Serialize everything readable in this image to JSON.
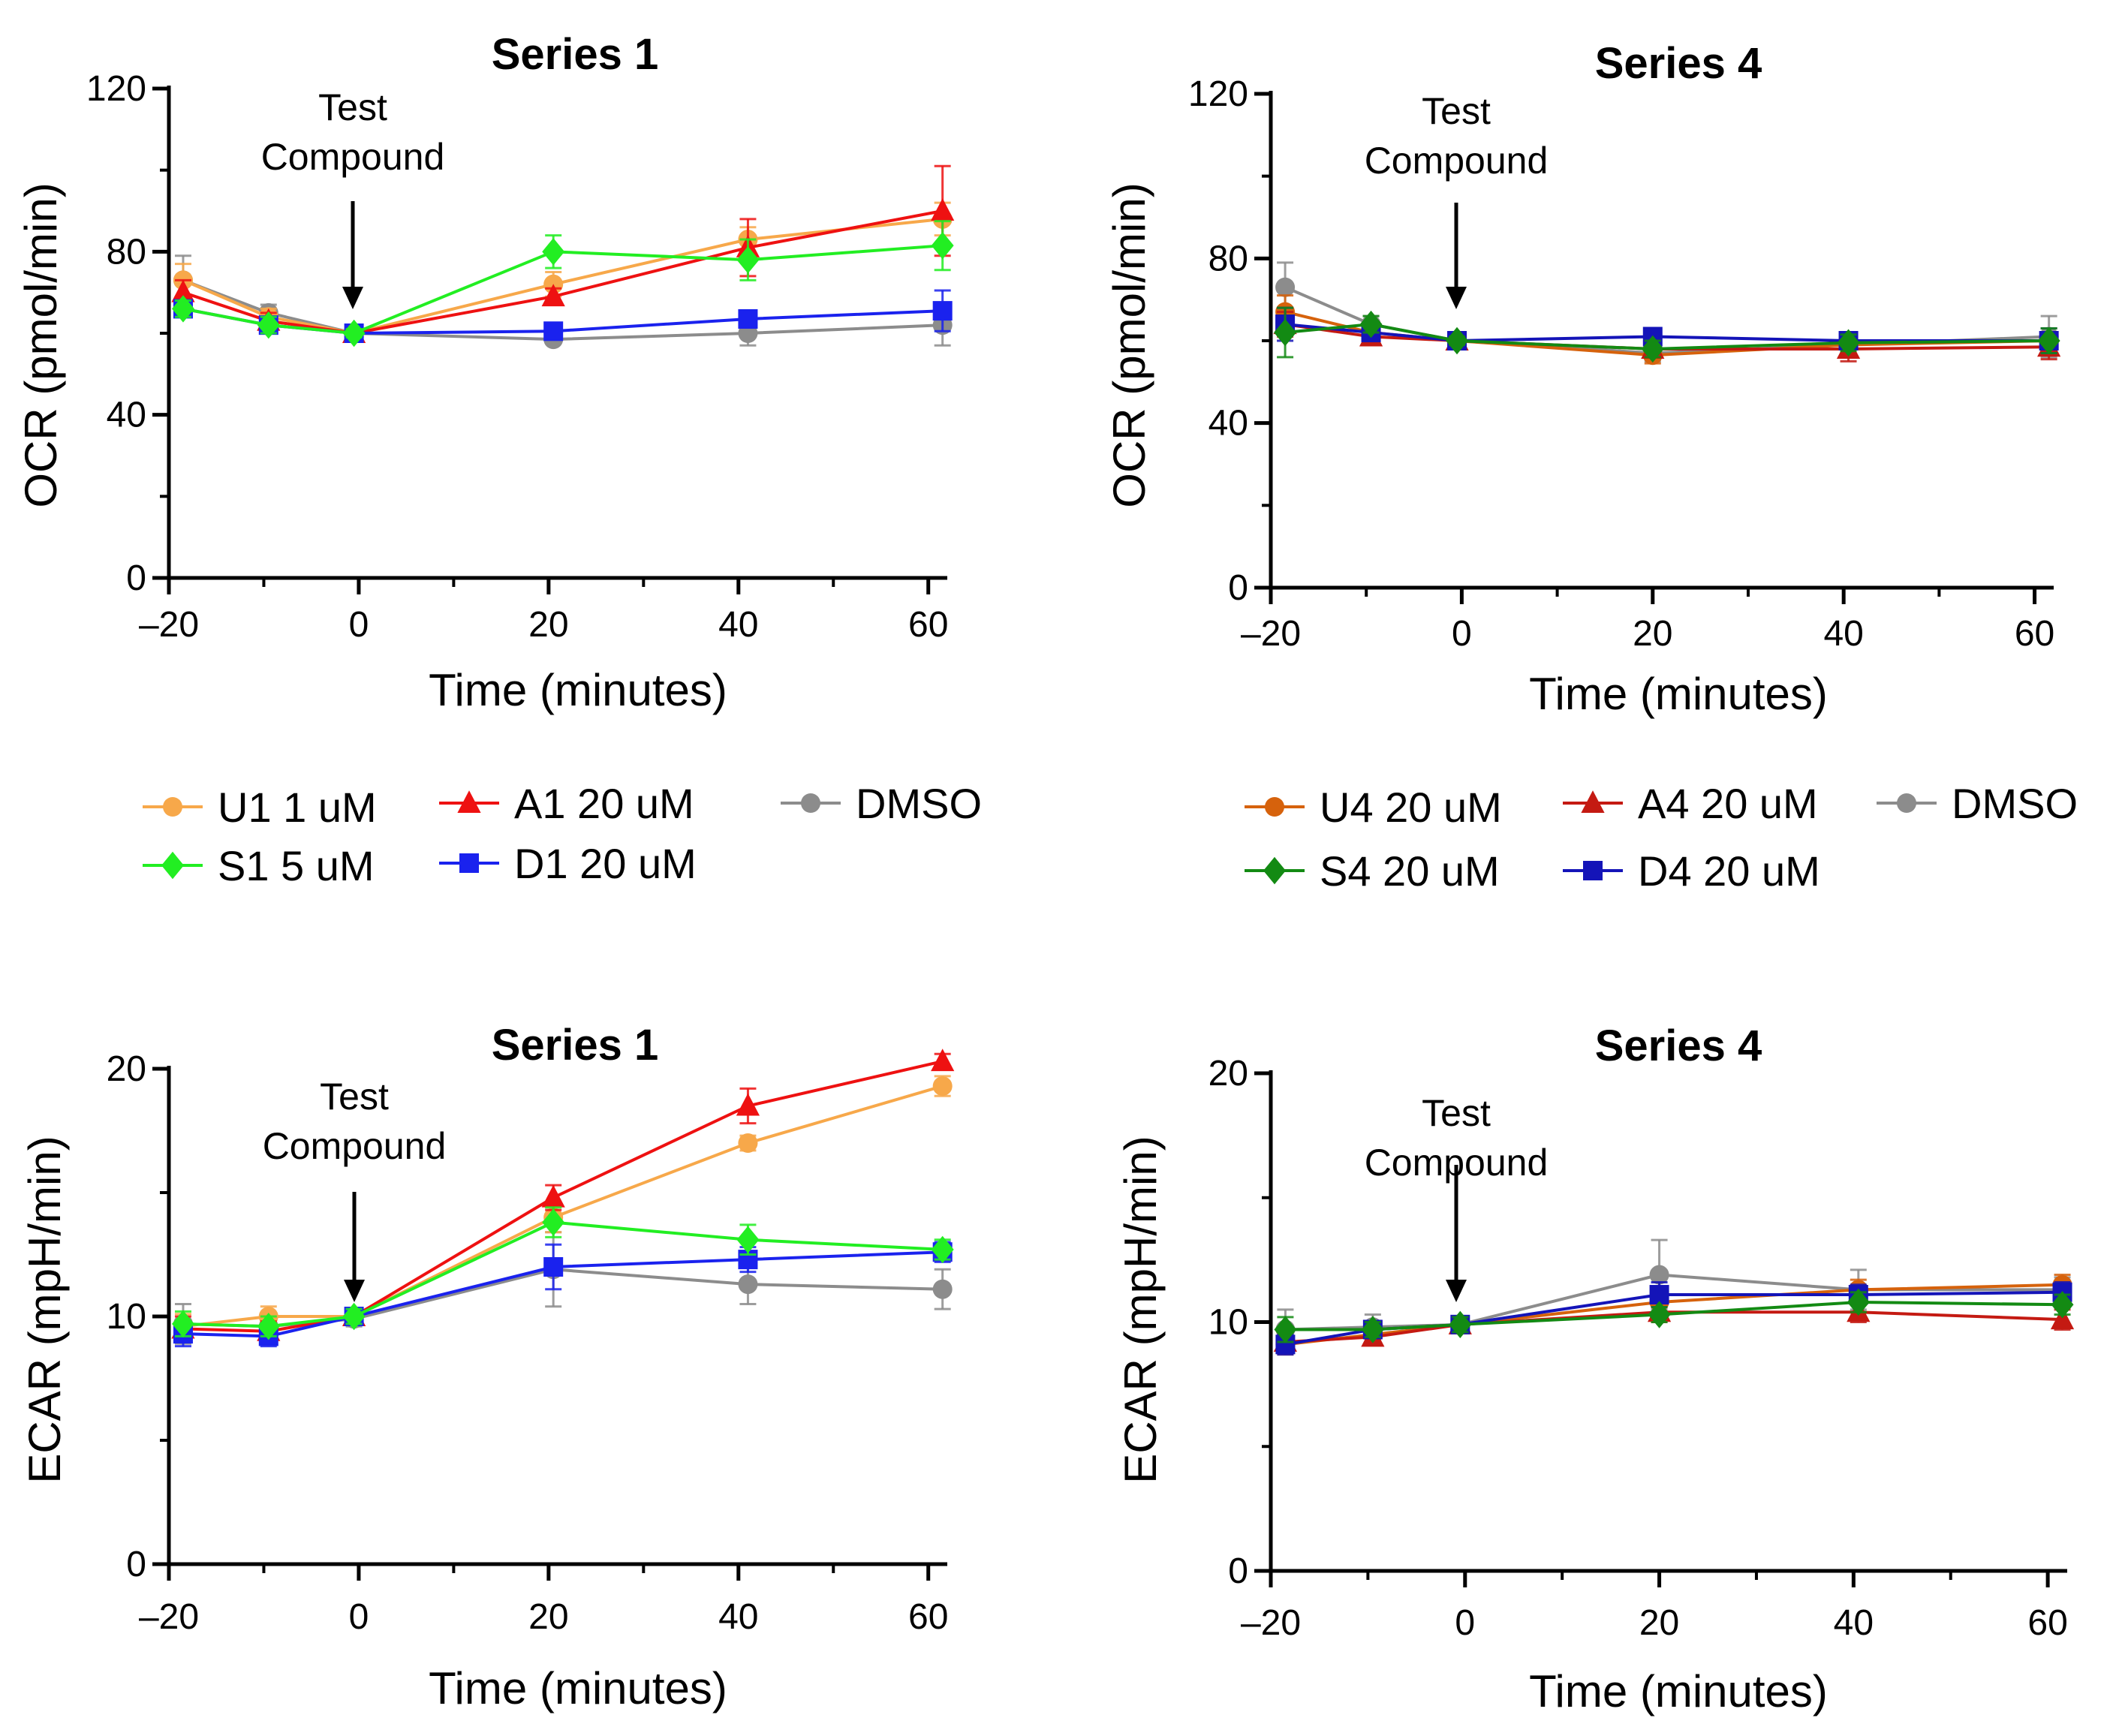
{
  "colors": {
    "U1": "#F7A84A",
    "S1": "#22EE22",
    "A1": "#EE1111",
    "D1": "#1A22EE",
    "DMSO": "#8C8C8C",
    "U4": "#D6620C",
    "S4": "#138A13",
    "A4": "#C41A12",
    "D4": "#1414B8"
  },
  "chart_data": [
    {
      "id": "ocr1",
      "type": "line",
      "title": "Series 1",
      "xlabel": "Time (minutes)",
      "ylabel": "OCR (pmol/min)",
      "xlim": [
        -20,
        62
      ],
      "ylim": [
        0,
        120
      ],
      "xticks": [
        -20,
        0,
        20,
        40,
        60
      ],
      "yticks": [
        0,
        40,
        80,
        120
      ],
      "ytick_labels": [
        "0",
        "40",
        "80",
        "120"
      ],
      "annotation": [
        "Test",
        "Compound"
      ],
      "series": [
        {
          "key": "DMSO",
          "name": "DMSO",
          "marker": "circle",
          "x": [
            -18.5,
            -9.5,
            -0.5,
            20.5,
            41,
            61.5
          ],
          "y": [
            73,
            65,
            60,
            58.5,
            60,
            62
          ],
          "err": [
            6,
            2,
            1,
            1,
            3,
            5
          ]
        },
        {
          "key": "U1",
          "name": "U1 1 uM",
          "marker": "circle",
          "x": [
            -18.5,
            -9.5,
            -0.5,
            20.5,
            41,
            61.5
          ],
          "y": [
            73,
            64,
            60,
            72,
            83,
            88
          ],
          "err": [
            4,
            2,
            1,
            3,
            3,
            4
          ]
        },
        {
          "key": "A1",
          "name": "A1 20 uM",
          "marker": "triangle",
          "x": [
            -18.5,
            -9.5,
            -0.5,
            20.5,
            41,
            61.5
          ],
          "y": [
            70,
            63,
            60,
            69,
            81,
            90
          ],
          "err": [
            3,
            2,
            1,
            2,
            7,
            11
          ]
        },
        {
          "key": "D1",
          "name": "D1 20 uM",
          "marker": "square",
          "x": [
            -18.5,
            -9.5,
            -0.5,
            20.5,
            41,
            61.5
          ],
          "y": [
            66,
            62,
            60,
            60.5,
            63.5,
            65.5
          ],
          "err": [
            2,
            2,
            1,
            2,
            2,
            5
          ]
        },
        {
          "key": "S1",
          "name": "S1 5 uM",
          "marker": "diamond",
          "x": [
            -18.5,
            -9.5,
            -0.5,
            20.5,
            41,
            61.5
          ],
          "y": [
            66,
            62,
            60,
            80,
            78,
            81.5
          ],
          "err": [
            2,
            2,
            1,
            4,
            5,
            6
          ]
        }
      ]
    },
    {
      "id": "ocr4",
      "type": "line",
      "title": "Series 4",
      "xlabel": "Time (minutes)",
      "ylabel": "OCR (pmol/min)",
      "xlim": [
        -20,
        62
      ],
      "ylim": [
        0,
        120
      ],
      "xticks": [
        -20,
        0,
        20,
        40,
        60
      ],
      "yticks": [
        0,
        40,
        80,
        120
      ],
      "ytick_labels": [
        "0",
        "40",
        "80",
        "120"
      ],
      "annotation": [
        "Test",
        "Compound"
      ],
      "series": [
        {
          "key": "DMSO",
          "name": "DMSO",
          "marker": "circle",
          "x": [
            -18.5,
            -9.5,
            -0.5,
            20,
            40.5,
            61.5
          ],
          "y": [
            73,
            64,
            60,
            57,
            59,
            61
          ],
          "err": [
            6,
            2,
            1,
            2,
            3,
            5
          ]
        },
        {
          "key": "U4",
          "name": "U4 20 uM",
          "marker": "circle",
          "x": [
            -18.5,
            -9.5,
            -0.5,
            20,
            40.5,
            61.5
          ],
          "y": [
            67,
            62,
            60,
            56.5,
            59,
            60
          ],
          "err": [
            4,
            2,
            1,
            2,
            2,
            3
          ]
        },
        {
          "key": "A4",
          "name": "A4 20 uM",
          "marker": "triangle",
          "x": [
            -18.5,
            -9.5,
            -0.5,
            20,
            40.5,
            61.5
          ],
          "y": [
            64,
            61,
            60,
            58,
            58,
            58.5
          ],
          "err": [
            3,
            2,
            1,
            2,
            3,
            3
          ]
        },
        {
          "key": "D4",
          "name": "D4 20 uM",
          "marker": "square",
          "x": [
            -18.5,
            -9.5,
            -0.5,
            20,
            40.5,
            61.5
          ],
          "y": [
            64,
            62,
            60,
            61,
            60,
            60
          ],
          "err": [
            4,
            2,
            1,
            2,
            2,
            3
          ]
        },
        {
          "key": "S4",
          "name": "S4 20 uM",
          "marker": "diamond",
          "x": [
            -18.5,
            -9.5,
            -0.5,
            20,
            40.5,
            61.5
          ],
          "y": [
            62,
            64,
            60,
            58,
            59.5,
            60
          ],
          "err": [
            6,
            2,
            1,
            2,
            2,
            3
          ]
        }
      ]
    },
    {
      "id": "ecar1",
      "type": "line",
      "title": "Series 1",
      "xlabel": "Time (minutes)",
      "ylabel": "ECAR (mpH/min)",
      "xlim": [
        -20,
        62
      ],
      "ylim": [
        0,
        21
      ],
      "xticks": [
        -20,
        0,
        20,
        40,
        60
      ],
      "yticks": [
        0,
        10,
        20
      ],
      "ytick_labels": [
        "0",
        "10",
        "20"
      ],
      "annotation": [
        "Test",
        "Compound"
      ],
      "series": [
        {
          "key": "DMSO",
          "name": "DMSO",
          "marker": "circle",
          "x": [
            -18.5,
            -9.5,
            -0.5,
            20.5,
            41,
            61.5
          ],
          "y": [
            9.7,
            9.6,
            9.9,
            11.9,
            11.3,
            11.1
          ],
          "err": [
            0.8,
            0.5,
            0.3,
            1.5,
            0.8,
            0.8
          ]
        },
        {
          "key": "U1",
          "name": "U1 1 uM",
          "marker": "circle",
          "x": [
            -18.5,
            -9.5,
            -0.5,
            20.5,
            41,
            61.5
          ],
          "y": [
            9.6,
            10,
            10,
            14,
            17,
            19.3
          ],
          "err": [
            0.5,
            0.4,
            0.3,
            0.6,
            0.3,
            0.4
          ]
        },
        {
          "key": "A1",
          "name": "A1 20 uM",
          "marker": "triangle",
          "x": [
            -18.5,
            -9.5,
            -0.5,
            20.5,
            41,
            61.5
          ],
          "y": [
            9.5,
            9.4,
            10,
            14.8,
            18.5,
            20.3
          ],
          "err": [
            0.5,
            0.4,
            0.3,
            0.5,
            0.7,
            0.3
          ]
        },
        {
          "key": "D1",
          "name": "D1 20 uM",
          "marker": "square",
          "x": [
            -18.5,
            -9.5,
            -0.5,
            20.5,
            41,
            61.5
          ],
          "y": [
            9.3,
            9.2,
            10,
            12,
            12.3,
            12.6
          ],
          "err": [
            0.5,
            0.4,
            0.3,
            0.9,
            0.5,
            0.4
          ]
        },
        {
          "key": "S1",
          "name": "S1 5 uM",
          "marker": "diamond",
          "x": [
            -18.5,
            -9.5,
            -0.5,
            20.5,
            41,
            61.5
          ],
          "y": [
            9.7,
            9.6,
            10,
            13.8,
            13.1,
            12.7
          ],
          "err": [
            0.5,
            0.4,
            0.3,
            0.6,
            0.6,
            0.4
          ]
        }
      ]
    },
    {
      "id": "ecar4",
      "type": "line",
      "title": "Series 4",
      "xlabel": "Time (minutes)",
      "ylabel": "ECAR (mpH/min)",
      "xlim": [
        -20,
        62
      ],
      "ylim": [
        0,
        21
      ],
      "xticks": [
        -20,
        0,
        20,
        40,
        60
      ],
      "yticks": [
        0,
        10,
        20
      ],
      "ytick_labels": [
        "0",
        "10",
        "20"
      ],
      "annotation": [
        "Test",
        "Compound"
      ],
      "series": [
        {
          "key": "DMSO",
          "name": "DMSO",
          "marker": "circle",
          "x": [
            -18.5,
            -9.5,
            -0.5,
            20,
            40.5,
            61.5
          ],
          "y": [
            9.7,
            9.8,
            9.9,
            11.9,
            11.3,
            11.3
          ],
          "err": [
            0.8,
            0.5,
            0.3,
            1.4,
            0.8,
            0.5
          ]
        },
        {
          "key": "U4",
          "name": "U4 20 uM",
          "marker": "circle",
          "x": [
            -18.5,
            -9.5,
            -0.5,
            20,
            40.5,
            61.5
          ],
          "y": [
            9.1,
            9.5,
            9.9,
            10.8,
            11.3,
            11.5
          ],
          "err": [
            0.4,
            0.3,
            0.3,
            0.4,
            0.4,
            0.4
          ]
        },
        {
          "key": "A4",
          "name": "A4 20 uM",
          "marker": "triangle",
          "x": [
            -18.5,
            -9.5,
            -0.5,
            20,
            40.5,
            61.5
          ],
          "y": [
            9.2,
            9.4,
            9.9,
            10.4,
            10.4,
            10.1
          ],
          "err": [
            0.4,
            0.3,
            0.3,
            0.4,
            0.4,
            0.4
          ]
        },
        {
          "key": "D4",
          "name": "D4 20 uM",
          "marker": "square",
          "x": [
            -18.5,
            -9.5,
            -0.5,
            20,
            40.5,
            61.5
          ],
          "y": [
            9.1,
            9.7,
            9.9,
            11.1,
            11.1,
            11.2
          ],
          "err": [
            0.4,
            0.3,
            0.3,
            0.5,
            0.4,
            0.4
          ]
        },
        {
          "key": "S4",
          "name": "S4 20 uM",
          "marker": "diamond",
          "x": [
            -18.5,
            -9.5,
            -0.5,
            20,
            40.5,
            61.5
          ],
          "y": [
            9.7,
            9.7,
            9.9,
            10.3,
            10.8,
            10.7
          ],
          "err": [
            0.5,
            0.3,
            0.3,
            0.3,
            0.4,
            0.4
          ]
        }
      ]
    }
  ],
  "legends": [
    {
      "items": [
        {
          "key": "U1",
          "label": "U1 1 uM",
          "marker": "circle"
        },
        {
          "key": "A1",
          "label": "A1 20 uM",
          "marker": "triangle"
        },
        {
          "key": "DMSO",
          "label": "DMSO",
          "marker": "circle"
        },
        {
          "key": "S1",
          "label": "S1 5 uM",
          "marker": "diamond"
        },
        {
          "key": "D1",
          "label": "D1 20 uM",
          "marker": "square"
        }
      ]
    },
    {
      "items": [
        {
          "key": "U4",
          "label": "U4 20 uM",
          "marker": "circle"
        },
        {
          "key": "A4",
          "label": "A4 20 uM",
          "marker": "triangle"
        },
        {
          "key": "DMSO",
          "label": "DMSO",
          "marker": "circle"
        },
        {
          "key": "S4",
          "label": "S4 20 uM",
          "marker": "diamond"
        },
        {
          "key": "D4",
          "label": "D4 20 uM",
          "marker": "square"
        }
      ]
    }
  ]
}
